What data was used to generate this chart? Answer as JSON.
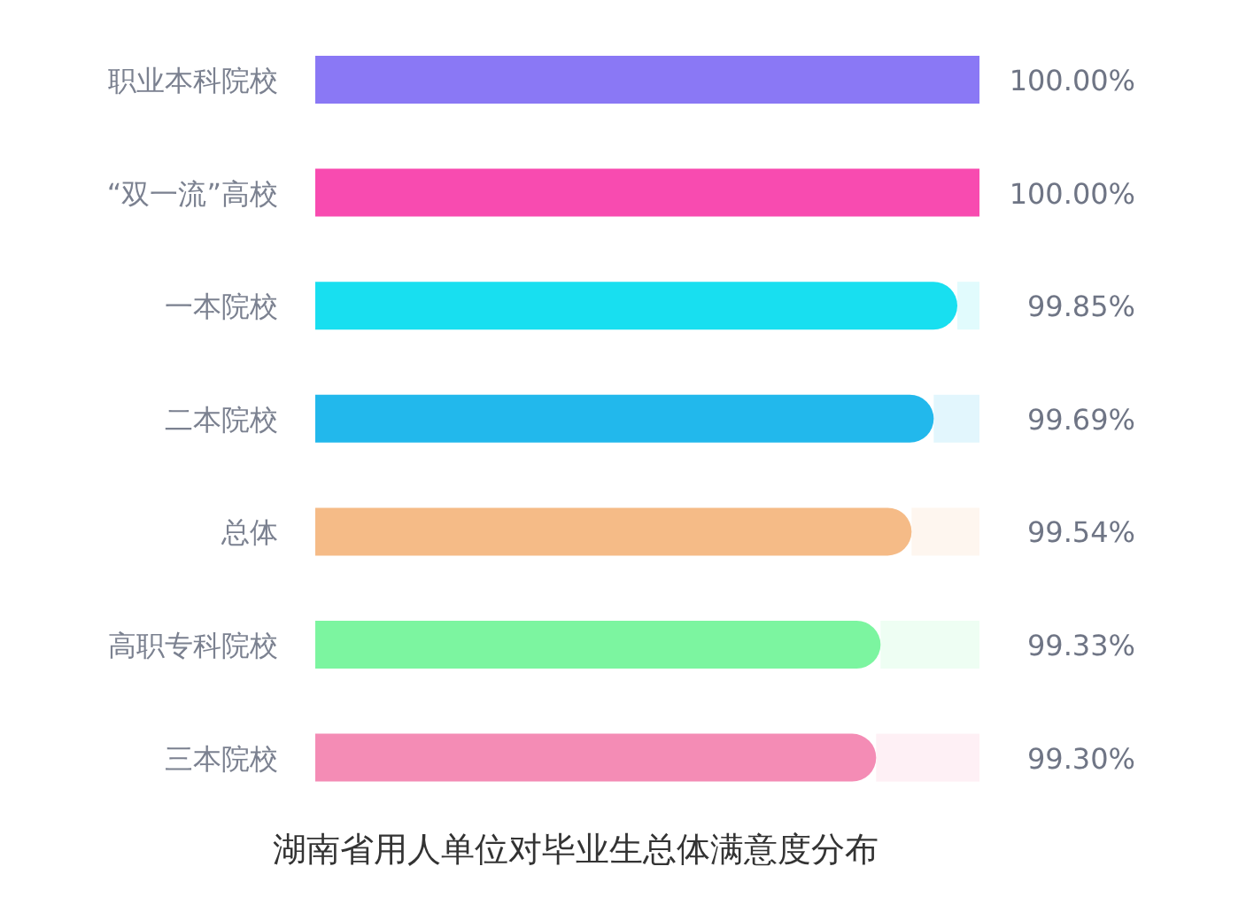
{
  "chart_data": {
    "type": "bar",
    "orientation": "horizontal",
    "title": "湖南省用人单位对毕业生总体满意度分布",
    "categories": [
      "职业本科院校",
      "“双一流”高校",
      "一本院校",
      "二本院校",
      "总体",
      "高职专科院校",
      "三本院校"
    ],
    "values": [
      100.0,
      100.0,
      99.85,
      99.69,
      99.54,
      99.33,
      99.3
    ],
    "value_labels": [
      "100.00%",
      "100.00%",
      "99.85%",
      "99.69%",
      "99.54%",
      "99.33%",
      "99.30%"
    ],
    "colors": [
      "#8a78f5",
      "#f84bb0",
      "#18dff0",
      "#22b8ec",
      "#f5bb87",
      "#7cf5a0",
      "#f48cb5"
    ],
    "xlim": [
      95.5,
      100
    ]
  }
}
